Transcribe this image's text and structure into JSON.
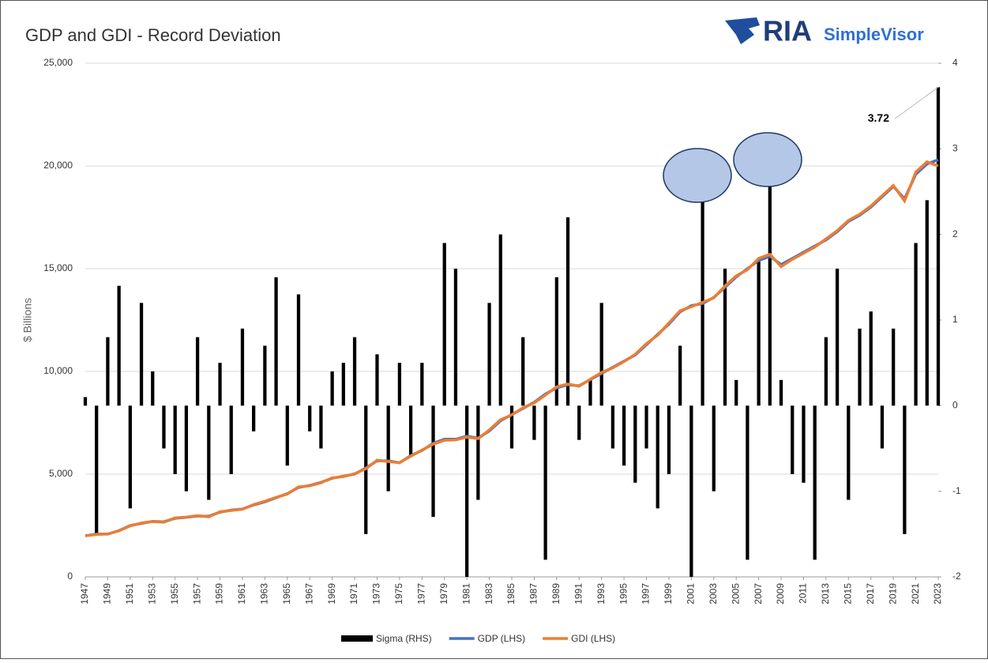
{
  "logo": {
    "brand": "RIA",
    "product": "SimpleVisor"
  },
  "chart_data": {
    "type": "combo",
    "title": "GDP and GDI - Record Deviation",
    "y_label": "$ Billions",
    "x": [
      1947,
      1948,
      1949,
      1950,
      1951,
      1952,
      1953,
      1954,
      1955,
      1956,
      1957,
      1958,
      1959,
      1960,
      1961,
      1962,
      1963,
      1964,
      1965,
      1966,
      1967,
      1968,
      1969,
      1970,
      1971,
      1972,
      1973,
      1974,
      1975,
      1976,
      1977,
      1978,
      1979,
      1980,
      1981,
      1982,
      1983,
      1984,
      1985,
      1986,
      1987,
      1988,
      1989,
      1990,
      1991,
      1992,
      1993,
      1994,
      1995,
      1996,
      1997,
      1998,
      1999,
      2000,
      2001,
      2002,
      2003,
      2004,
      2005,
      2006,
      2007,
      2008,
      2009,
      2010,
      2011,
      2012,
      2013,
      2014,
      2015,
      2016,
      2017,
      2018,
      2019,
      2020,
      2021,
      2022,
      2023
    ],
    "xlim": [
      1947,
      2023
    ],
    "xticks": [
      1947,
      1949,
      1951,
      1953,
      1955,
      1957,
      1959,
      1961,
      1963,
      1965,
      1967,
      1969,
      1971,
      1973,
      1975,
      1977,
      1979,
      1981,
      1983,
      1985,
      1987,
      1989,
      1991,
      1993,
      1995,
      1997,
      1999,
      2001,
      2003,
      2005,
      2007,
      2009,
      2011,
      2013,
      2015,
      2017,
      2019,
      2021,
      2023
    ],
    "ylim": [
      0,
      25000
    ],
    "yticks": [
      0,
      {
        "value": 5000,
        "label": "5,000"
      },
      {
        "value": 10000,
        "label": "10,000"
      },
      {
        "value": 15000,
        "label": "15,000"
      },
      {
        "value": 20000,
        "label": "20,000"
      },
      {
        "value": 25000,
        "label": "25,000"
      }
    ],
    "y2lim": [
      -2,
      4
    ],
    "y2ticks": [
      -2,
      -1,
      0,
      1,
      2,
      3,
      4
    ],
    "grid": true,
    "legend": "bottom",
    "series": [
      {
        "name": "Sigma (RHS)",
        "type": "bar",
        "axis": "y2",
        "color": "#000000",
        "values": [
          0.1,
          -1.5,
          0.8,
          1.4,
          -1.2,
          1.2,
          0.4,
          -0.5,
          -0.8,
          -1.0,
          0.8,
          -1.1,
          0.5,
          -0.8,
          0.9,
          -0.3,
          0.7,
          1.5,
          -0.7,
          1.3,
          -0.3,
          -0.5,
          0.4,
          0.5,
          0.8,
          -1.5,
          0.6,
          -1.0,
          0.5,
          -0.6,
          0.5,
          -1.3,
          1.9,
          1.6,
          -2.0,
          -1.1,
          1.2,
          2.0,
          -0.5,
          0.8,
          -0.4,
          -1.8,
          1.5,
          2.2,
          -0.4,
          0.3,
          1.2,
          -0.5,
          -0.7,
          -0.9,
          -0.5,
          -1.2,
          -0.8,
          0.7,
          -2.0,
          2.7,
          -1.0,
          1.6,
          0.3,
          -1.8,
          1.7,
          2.85,
          0.3,
          -0.8,
          -0.9,
          -1.8,
          0.8,
          1.6,
          -1.1,
          0.9,
          1.1,
          -0.5,
          0.9,
          -1.5,
          1.9,
          2.4,
          3.72
        ]
      },
      {
        "name": "GDP (LHS)",
        "type": "line",
        "color": "#4472c4",
        "values": [
          2000,
          2080,
          2080,
          2250,
          2500,
          2600,
          2700,
          2680,
          2850,
          2900,
          2960,
          2950,
          3150,
          3250,
          3300,
          3500,
          3650,
          3850,
          4050,
          4350,
          4450,
          4600,
          4800,
          4900,
          5000,
          5300,
          5650,
          5650,
          5550,
          5900,
          6150,
          6500,
          6700,
          6700,
          6850,
          6750,
          7100,
          7600,
          7900,
          8200,
          8500,
          8900,
          9200,
          9350,
          9300,
          9600,
          9900,
          10200,
          10500,
          10800,
          11300,
          11800,
          12300,
          12900,
          13200,
          13300,
          13600,
          14100,
          14600,
          15000,
          15400,
          15600,
          15200,
          15500,
          15800,
          16100,
          16400,
          16800,
          17300,
          17600,
          18000,
          18500,
          19000,
          18400,
          19600,
          20100,
          20300
        ]
      },
      {
        "name": "GDI (LHS)",
        "type": "line",
        "color": "#ed7d31",
        "values": [
          2000,
          2060,
          2090,
          2240,
          2480,
          2620,
          2690,
          2660,
          2870,
          2910,
          2980,
          2920,
          3170,
          3230,
          3290,
          3520,
          3680,
          3870,
          4030,
          4380,
          4430,
          4580,
          4820,
          4880,
          5020,
          5260,
          5680,
          5610,
          5560,
          5870,
          6170,
          6460,
          6650,
          6670,
          6800,
          6730,
          7150,
          7650,
          7880,
          8230,
          8470,
          8850,
          9250,
          9390,
          9280,
          9620,
          9950,
          10170,
          10480,
          10830,
          11350,
          11760,
          12360,
          12950,
          13150,
          13360,
          13580,
          14160,
          14650,
          14950,
          15500,
          15700,
          15100,
          15460,
          15750,
          16050,
          16450,
          16850,
          17350,
          17650,
          18050,
          18550,
          19050,
          18300,
          19700,
          20200,
          20000
        ]
      }
    ]
  }
}
